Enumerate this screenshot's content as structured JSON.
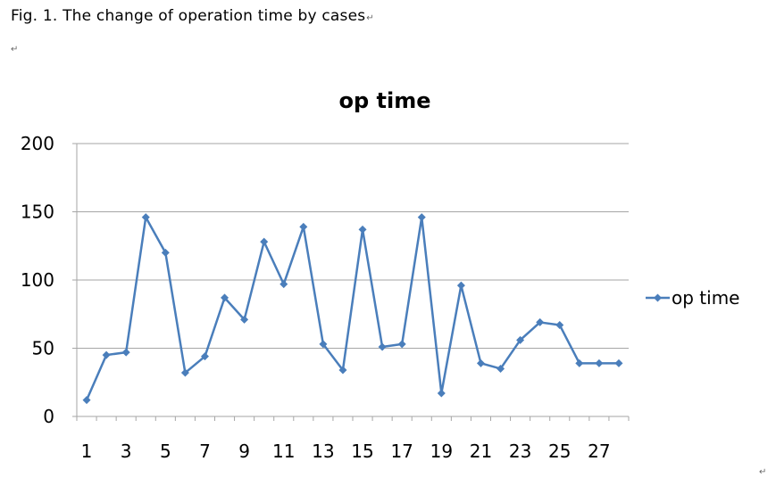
{
  "document": {
    "caption": "Fig. 1. The change of operation time by cases",
    "paragraph_mark": "↵"
  },
  "chart_data": {
    "type": "line",
    "title": "op time",
    "xlabel": "",
    "ylabel": "",
    "x": [
      1,
      2,
      3,
      4,
      5,
      6,
      7,
      8,
      9,
      10,
      11,
      12,
      13,
      14,
      15,
      16,
      17,
      18,
      19,
      20,
      21,
      22,
      23,
      24,
      25,
      26,
      27,
      28
    ],
    "x_tick_labels": [
      "1",
      "3",
      "5",
      "7",
      "9",
      "11",
      "13",
      "15",
      "17",
      "19",
      "21",
      "23",
      "25",
      "27"
    ],
    "y_tick_labels": [
      "0",
      "50",
      "100",
      "150",
      "200"
    ],
    "ylim": [
      0,
      200
    ],
    "grid": true,
    "legend_position": "right",
    "series": [
      {
        "name": "op time",
        "color": "#4a7ebb",
        "marker": "diamond",
        "values": [
          12,
          45,
          47,
          146,
          120,
          32,
          44,
          87,
          71,
          128,
          97,
          139,
          53,
          34,
          137,
          51,
          53,
          146,
          17,
          96,
          39,
          35,
          56,
          69,
          67,
          39,
          39,
          39
        ]
      }
    ]
  }
}
